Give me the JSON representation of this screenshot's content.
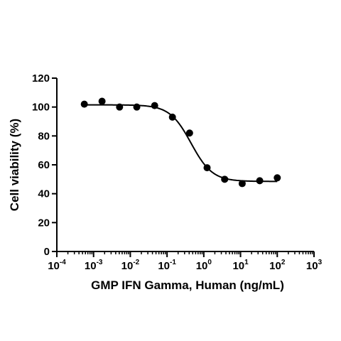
{
  "chart_data": {
    "type": "scatter",
    "title": "",
    "xlabel": "GMP IFN Gamma, Human (ng/mL)",
    "ylabel": "Cell viability (%)",
    "x_scale": "log10",
    "xlim": [
      0.0001,
      1000
    ],
    "ylim": [
      0,
      120
    ],
    "x_ticks": [
      {
        "base": "10",
        "exp": "-4"
      },
      {
        "base": "10",
        "exp": "-3"
      },
      {
        "base": "10",
        "exp": "-2"
      },
      {
        "base": "10",
        "exp": "-1"
      },
      {
        "base": "10",
        "exp": "0"
      },
      {
        "base": "10",
        "exp": "1"
      },
      {
        "base": "10",
        "exp": "2"
      },
      {
        "base": "10",
        "exp": "3"
      }
    ],
    "y_ticks": [
      "0",
      "20",
      "40",
      "60",
      "80",
      "100",
      "120"
    ],
    "grid": false,
    "legend": "none",
    "series": [
      {
        "marker": "circle",
        "color": "#000000",
        "x": [
          0.00056,
          0.0017,
          0.0051,
          0.015,
          0.046,
          0.14,
          0.41,
          1.23,
          3.7,
          11.1,
          33.3,
          100
        ],
        "y": [
          102,
          104,
          100,
          100,
          101,
          93,
          82,
          58,
          50,
          47,
          49,
          51
        ]
      }
    ],
    "fit_curve": {
      "model": "four-parameter logistic",
      "color": "#000000",
      "bottom": 48.5,
      "top": 101.5,
      "ec50": 0.45,
      "hill_slope": 1.5
    }
  }
}
